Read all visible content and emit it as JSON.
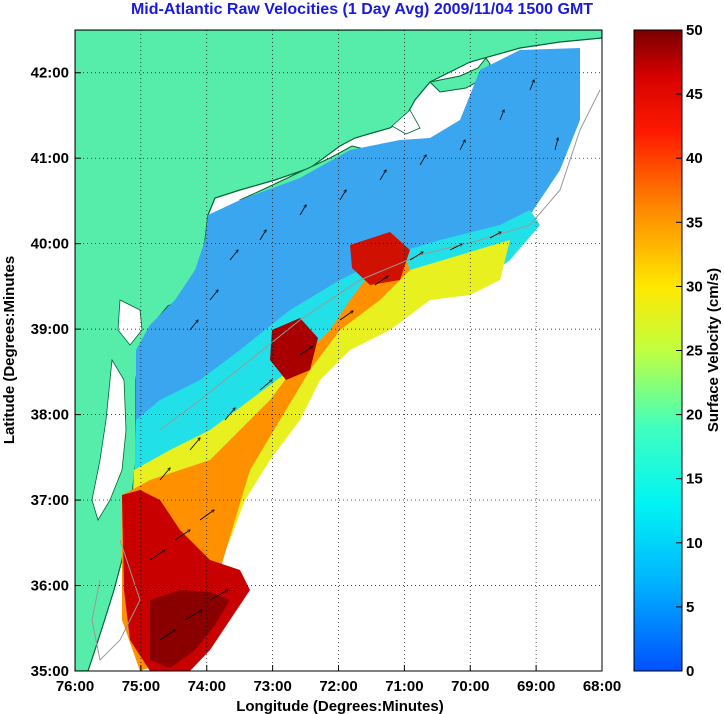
{
  "title": "Mid-Atlantic Raw Velocities (1 Day Avg) 2009/11/04 1500 GMT",
  "axes": {
    "xlabel": "Longitude (Degrees:Minutes)",
    "ylabel": "Latitude (Degrees:Minutes",
    "x_ticks": [
      "76:00",
      "75:00",
      "74:00",
      "73:00",
      "72:00",
      "71:00",
      "70:00",
      "69:00",
      "68:00"
    ],
    "y_ticks": [
      "35:00",
      "36:00",
      "37:00",
      "38:00",
      "39:00",
      "40:00",
      "41:00",
      "42:00"
    ],
    "x_range_deg_west": [
      76,
      68
    ],
    "y_range_deg_north": [
      35,
      42.5
    ],
    "grid": "dotted"
  },
  "colorbar": {
    "label": "Surface Velocity (cm/s)",
    "ticks": [
      "0",
      "5",
      "10",
      "15",
      "20",
      "25",
      "30",
      "35",
      "40",
      "45",
      "50"
    ],
    "range": [
      0,
      50
    ],
    "colormap": "jet"
  },
  "colors": {
    "land": "#55eda9",
    "coast": "#006633",
    "title": "#1a1adf",
    "bathymetry": "#999999"
  }
}
